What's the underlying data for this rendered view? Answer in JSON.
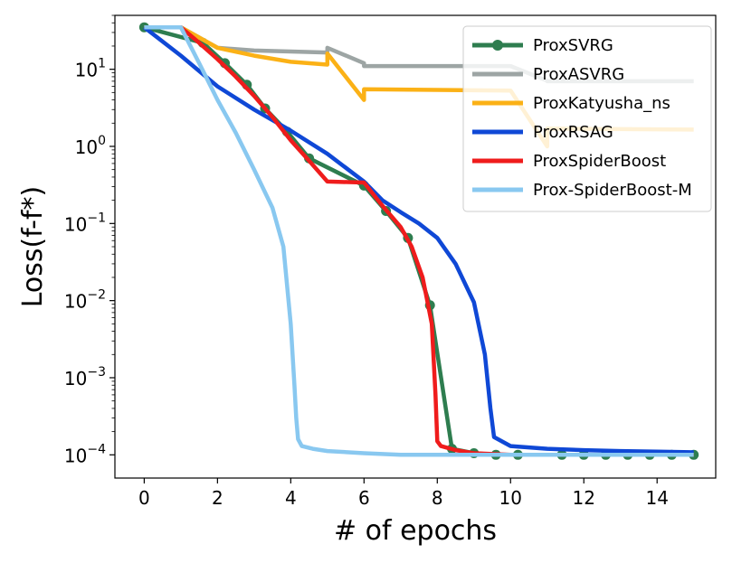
{
  "chart_data": {
    "type": "line",
    "xlabel": "# of epochs",
    "ylabel": "Loss(f-f*)",
    "yscale": "log",
    "xlim": [
      -0.8,
      15.6
    ],
    "ylim": [
      5e-05,
      50
    ],
    "xticks": [
      0,
      2,
      4,
      6,
      8,
      10,
      12,
      14
    ],
    "yticks": [
      {
        "value": 10,
        "base": "10",
        "exp": "1"
      },
      {
        "value": 1,
        "base": "10",
        "exp": "0"
      },
      {
        "value": 0.1,
        "base": "10",
        "exp": "−1"
      },
      {
        "value": 0.01,
        "base": "10",
        "exp": "−2"
      },
      {
        "value": 0.001,
        "base": "10",
        "exp": "−3"
      },
      {
        "value": 0.0001,
        "base": "10",
        "exp": "−4"
      }
    ],
    "legend_position": "top-right",
    "series": [
      {
        "name": "ProxSVRG",
        "color": "#2e7d4f",
        "marker": "circle",
        "x": [
          0,
          1.6,
          2.2,
          2.8,
          3.3,
          3.9,
          4.5,
          6.0,
          6.6,
          7.2,
          7.8,
          8.4,
          9.0,
          9.6,
          10.2,
          11.4,
          12.0,
          12.6,
          13.2,
          13.8,
          14.4,
          15.0
        ],
        "y": [
          35,
          22,
          12,
          6.3,
          3.1,
          1.55,
          0.7,
          0.31,
          0.145,
          0.065,
          0.0087,
          0.00012,
          0.000105,
          0.0001,
          0.0001,
          0.0001,
          0.0001,
          0.0001,
          0.0001,
          0.0001,
          0.0001,
          0.0001
        ]
      },
      {
        "name": "ProxASVRG",
        "color": "#9da5a4",
        "marker": "none",
        "x": [
          0,
          1.0,
          2.0,
          3.0,
          5.0,
          5.0,
          6.0,
          6.0,
          10.0,
          11.0,
          11.0,
          15.0
        ],
        "y": [
          35,
          35,
          19,
          17.5,
          16.5,
          19,
          12,
          11,
          11,
          7.1,
          7.0,
          7.0
        ]
      },
      {
        "name": "ProxKatyusha_ns",
        "color": "#fbb116",
        "marker": "none",
        "x": [
          0,
          1.0,
          2.0,
          3.0,
          4.0,
          5.0,
          5.0,
          6.0,
          6.0,
          10.0,
          11.0,
          11.0,
          15.0
        ],
        "y": [
          35,
          35,
          19,
          15,
          12.5,
          11.5,
          16,
          4.0,
          5.5,
          5.3,
          1.0,
          1.7,
          1.65
        ]
      },
      {
        "name": "ProxRSAG",
        "color": "#0f48d6",
        "marker": "none",
        "x": [
          0,
          1.0,
          2.0,
          3.0,
          4.0,
          5.0,
          6.0,
          6.5,
          7.0,
          7.5,
          8.0,
          8.5,
          9.0,
          9.3,
          9.45,
          9.55,
          10.0,
          11.0,
          12.0,
          13.0,
          14.0,
          15.0
        ],
        "y": [
          35,
          15,
          6.0,
          3.0,
          1.6,
          0.8,
          0.35,
          0.2,
          0.14,
          0.1,
          0.065,
          0.03,
          0.0095,
          0.002,
          0.0004,
          0.00017,
          0.00013,
          0.00012,
          0.000115,
          0.000112,
          0.00011,
          0.000108
        ]
      },
      {
        "name": "ProxSpiderBoost",
        "color": "#ef1c1c",
        "marker": "none",
        "x": [
          0,
          1.0,
          1.5,
          2.0,
          2.5,
          3.0,
          3.5,
          4.0,
          4.5,
          5.0,
          6.0,
          6.5,
          7.0,
          7.3,
          7.6,
          7.85,
          7.95,
          8.0,
          8.1,
          8.5,
          9.0,
          10.0,
          15.0
        ],
        "y": [
          35,
          35,
          22,
          13.5,
          8.0,
          4.5,
          2.4,
          1.2,
          0.65,
          0.35,
          0.34,
          0.17,
          0.09,
          0.05,
          0.02,
          0.005,
          0.0006,
          0.00015,
          0.00013,
          0.000115,
          0.000105,
          0.0001,
          0.0001
        ]
      },
      {
        "name": "Prox-SpiderBoost-M",
        "color": "#89c8f0",
        "marker": "none",
        "x": [
          0,
          1.0,
          1.5,
          2.0,
          2.5,
          3.0,
          3.5,
          3.8,
          4.0,
          4.1,
          4.15,
          4.2,
          4.3,
          4.6,
          5.0,
          6.0,
          7.0,
          10.0,
          15.0
        ],
        "y": [
          35,
          35,
          12,
          4.0,
          1.5,
          0.5,
          0.16,
          0.05,
          0.005,
          0.0008,
          0.0003,
          0.00016,
          0.00013,
          0.00012,
          0.000112,
          0.000105,
          0.0001,
          0.0001,
          0.0001
        ]
      }
    ]
  }
}
